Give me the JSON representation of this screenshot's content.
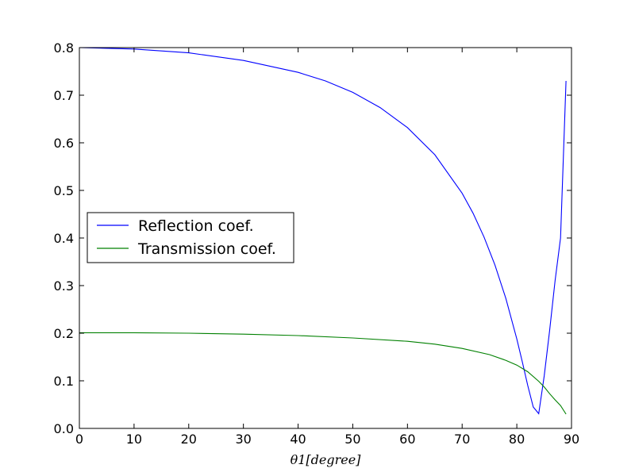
{
  "chart_data": {
    "type": "line",
    "title": "",
    "xlabel": "θ1[degree]",
    "ylabel": "",
    "xlim": [
      0,
      90
    ],
    "ylim": [
      0.0,
      0.8
    ],
    "xticks": [
      "0",
      "10",
      "20",
      "30",
      "40",
      "50",
      "60",
      "70",
      "80",
      "90"
    ],
    "yticks": [
      "0.0",
      "0.1",
      "0.2",
      "0.3",
      "0.4",
      "0.5",
      "0.6",
      "0.7",
      "0.8"
    ],
    "grid": false,
    "legend_position": "center-left",
    "series": [
      {
        "name": "Reflection coef.",
        "color": "#0000ff",
        "x": [
          0,
          10,
          20,
          30,
          40,
          45,
          50,
          55,
          60,
          65,
          70,
          72,
          74,
          76,
          78,
          80,
          81,
          82,
          83,
          84,
          85,
          86,
          87,
          88,
          89
        ],
        "y": [
          0.8,
          0.797,
          0.789,
          0.773,
          0.748,
          0.73,
          0.706,
          0.674,
          0.632,
          0.575,
          0.494,
          0.452,
          0.402,
          0.343,
          0.273,
          0.188,
          0.14,
          0.09,
          0.045,
          0.031,
          0.11,
          0.205,
          0.31,
          0.4,
          0.73
        ]
      },
      {
        "name": "Transmission coef.",
        "color": "#008000",
        "x": [
          0,
          10,
          20,
          30,
          40,
          50,
          60,
          65,
          70,
          75,
          78,
          80,
          82,
          84,
          85,
          86,
          87,
          88,
          89
        ],
        "y": [
          0.201,
          0.201,
          0.2,
          0.198,
          0.195,
          0.19,
          0.183,
          0.177,
          0.168,
          0.155,
          0.143,
          0.133,
          0.119,
          0.099,
          0.087,
          0.073,
          0.06,
          0.048,
          0.03
        ]
      }
    ]
  }
}
